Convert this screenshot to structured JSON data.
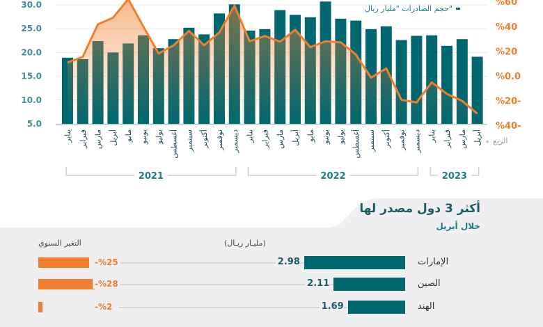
{
  "legend": {
    "bars_label": "حجم الصادرات \"مليار ريال\""
  },
  "chart_data": {
    "type": "bar+line",
    "categories": [
      "يناير",
      "فبراير",
      "مارس",
      "أبريل",
      "مايو",
      "يونيو",
      "يوليو",
      "أغسطس",
      "سبتمبر",
      "أكتوبر",
      "نوفمبر",
      "ديسمبر",
      "يناير",
      "فبراير",
      "مارس",
      "أبريل",
      "مايو",
      "يونيو",
      "يوليو",
      "أغسطس",
      "سبتمبر",
      "أكتوبر",
      "نوفمبر",
      "ديسمبر",
      "يناير",
      "فبراير",
      "مارس",
      "أبريل"
    ],
    "years": [
      {
        "label": "2021",
        "from": 0,
        "to": 11
      },
      {
        "label": "2022",
        "from": 12,
        "to": 23
      },
      {
        "label": "2023",
        "from": 24,
        "to": 27
      }
    ],
    "quarter_note": "الربع",
    "series": [
      {
        "name": "حجم الصادرات \"مليار ريال\"",
        "type": "bar",
        "axis": "left",
        "color": "#006770",
        "values": [
          18.9,
          18.6,
          22.4,
          20.0,
          21.9,
          23.6,
          20.9,
          22.8,
          25.2,
          23.8,
          28.2,
          30.1,
          24.6,
          24.9,
          28.9,
          27.9,
          27.4,
          30.7,
          27.1,
          26.7,
          24.9,
          25.5,
          22.6,
          23.5,
          23.6,
          21.4,
          22.8,
          19.1
        ]
      },
      {
        "type": "line",
        "axis": "right",
        "color": "#ef7f2e",
        "values": [
          10.7,
          15.3,
          41.6,
          47,
          62,
          39.7,
          18.1,
          24.7,
          36.3,
          24.7,
          35,
          56.6,
          27.9,
          32.2,
          27.5,
          37.2,
          23.2,
          27.9,
          27.1,
          17.2,
          -1.5,
          6,
          -19.3,
          -21.5,
          -5.2,
          -14.6,
          -20.2,
          -30.5
        ]
      }
    ],
    "left_axis": {
      "ylim": [
        5,
        30
      ],
      "ticks": [
        "5.0",
        "10.0",
        "15.0",
        "20.0",
        "25.0",
        "30.0"
      ]
    },
    "right_axis": {
      "ylim": [
        -40,
        60
      ],
      "ticks": [
        "%40-",
        "%20-",
        "%0.0",
        "%20",
        "%40",
        "%60"
      ]
    },
    "grid": true
  },
  "top3": {
    "title": "أكثر 3 دول مصدر لها",
    "subtitle": "خلال أبريل",
    "value_header": "(مليـار ريـال)",
    "change_header": "التغير السنوي",
    "rows": [
      {
        "country": "الإمارات",
        "value": 2.98,
        "value_label": "2.98",
        "change": -25,
        "change_label": "%25-"
      },
      {
        "country": "الصين",
        "value": 2.11,
        "value_label": "2.11",
        "change": -28,
        "change_label": "%28-"
      },
      {
        "country": "الهند",
        "value": 1.69,
        "value_label": "1.69",
        "change": -2,
        "change_label": "%2-"
      }
    ]
  }
}
